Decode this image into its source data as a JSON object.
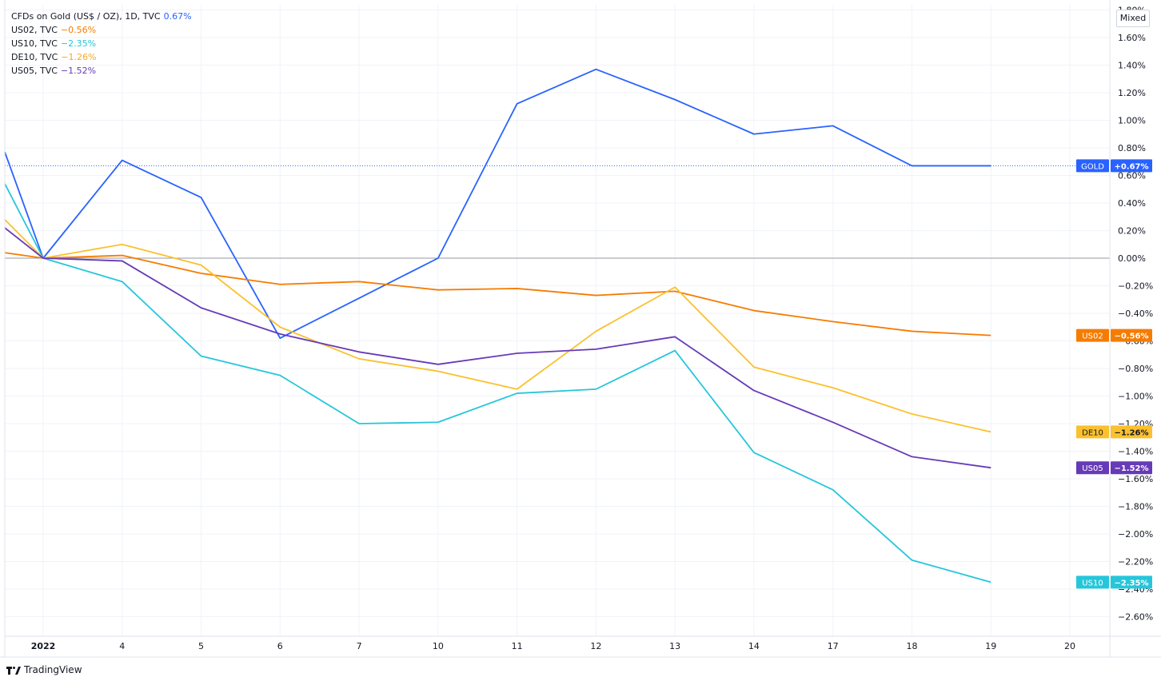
{
  "legend": [
    {
      "name": "CFDs on Gold (US$ / OZ), 1D, TVC",
      "value": "0.67%",
      "color": "#2962ff"
    },
    {
      "name": "US02, TVC",
      "value": "−0.56%",
      "color": "#f57c00"
    },
    {
      "name": "US10, TVC",
      "value": "−2.35%",
      "color": "#26c6da"
    },
    {
      "name": "DE10, TVC",
      "value": "−1.26%",
      "color": "#fbc02d"
    },
    {
      "name": "US05, TVC",
      "value": "−1.52%",
      "color": "#673ab7"
    }
  ],
  "mode_label": "Mixed",
  "branding": "TradingView",
  "chart_data": {
    "type": "line",
    "x_labels": [
      "2022",
      "4",
      "5",
      "6",
      "7",
      "10",
      "11",
      "12",
      "13",
      "14",
      "17",
      "18",
      "19",
      "20"
    ],
    "ylim": [
      -2.75,
      1.8
    ],
    "y_ticks": [
      "1.80%",
      "1.60%",
      "1.40%",
      "1.20%",
      "1.00%",
      "0.80%",
      "0.60%",
      "0.40%",
      "0.20%",
      "0.00%",
      "−0.20%",
      "−0.40%",
      "−0.60%",
      "−0.80%",
      "−1.00%",
      "−1.20%",
      "−1.40%",
      "−1.60%",
      "−1.80%",
      "−2.00%",
      "−2.20%",
      "−2.40%",
      "−2.60%"
    ],
    "y_tick_values": [
      1.8,
      1.6,
      1.4,
      1.2,
      1.0,
      0.8,
      0.6,
      0.4,
      0.2,
      0.0,
      -0.2,
      -0.4,
      -0.6,
      -0.8,
      -1.0,
      -1.2,
      -1.4,
      -1.6,
      -1.8,
      -2.0,
      -2.2,
      -2.4,
      -2.6
    ],
    "series": [
      {
        "name": "GOLD",
        "label": "+0.67%",
        "color": "#2962ff",
        "prior": 0.77,
        "values": [
          0.0,
          0.71,
          0.44,
          -0.58,
          -0.29,
          0.0,
          1.12,
          1.37,
          1.15,
          0.9,
          0.96,
          0.67,
          0.67
        ]
      },
      {
        "name": "US02",
        "label": "−0.56%",
        "color": "#f57c00",
        "prior": 0.04,
        "values": [
          0.0,
          0.02,
          -0.11,
          -0.19,
          -0.17,
          -0.23,
          -0.22,
          -0.27,
          -0.24,
          -0.38,
          -0.46,
          -0.53,
          -0.56
        ]
      },
      {
        "name": "US10",
        "label": "−2.35%",
        "color": "#26c6da",
        "prior": 0.54,
        "values": [
          0.0,
          -0.17,
          -0.71,
          -0.85,
          -1.2,
          -1.19,
          -0.98,
          -0.95,
          -0.67,
          -1.41,
          -1.68,
          -2.19,
          -2.35
        ]
      },
      {
        "name": "DE10",
        "label": "−1.26%",
        "color": "#fbc02d",
        "prior": 0.28,
        "values": [
          0.0,
          0.1,
          -0.05,
          -0.5,
          -0.73,
          -0.82,
          -0.95,
          -0.53,
          -0.21,
          -0.79,
          -0.94,
          -1.13,
          -1.26
        ]
      },
      {
        "name": "US05",
        "label": "−1.52%",
        "color": "#673ab7",
        "prior": 0.22,
        "values": [
          0.0,
          -0.02,
          -0.36,
          -0.55,
          -0.68,
          -0.77,
          -0.69,
          -0.66,
          -0.57,
          -0.96,
          -1.19,
          -1.44,
          -1.52
        ]
      }
    ]
  }
}
